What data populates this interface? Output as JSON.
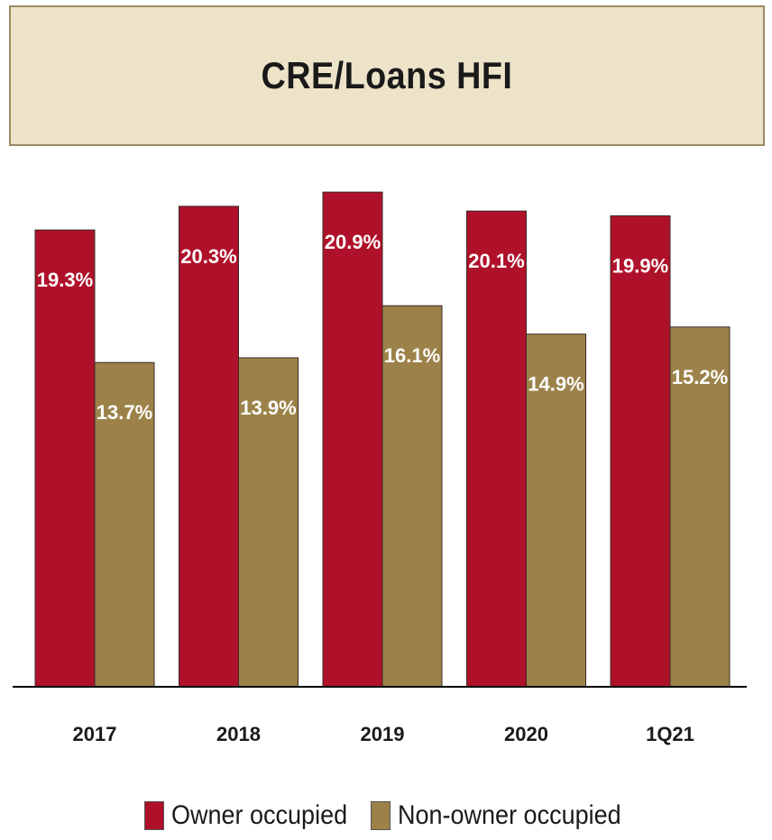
{
  "title": "CRE/Loans HFI",
  "colors": {
    "owner": "#b0112a",
    "non_owner": "#9c8249",
    "axis": "#000000"
  },
  "legend": [
    {
      "label": "Owner occupied",
      "color": "#b0112a"
    },
    {
      "label": "Non-owner occupied",
      "color": "#9c8249"
    }
  ],
  "chart_data": {
    "type": "bar",
    "title": "CRE/Loans HFI",
    "categories": [
      "2017",
      "2018",
      "2019",
      "2020",
      "1Q21"
    ],
    "series": [
      {
        "name": "Owner occupied",
        "values": [
          19.3,
          20.3,
          20.9,
          20.1,
          19.9
        ],
        "labels": [
          "19.3%",
          "20.3%",
          "20.9%",
          "20.1%",
          "19.9%"
        ]
      },
      {
        "name": "Non-owner occupied",
        "values": [
          13.7,
          13.9,
          16.1,
          14.9,
          15.2
        ],
        "labels": [
          "13.7%",
          "13.9%",
          "16.1%",
          "14.9%",
          "15.2%"
        ]
      }
    ],
    "ylim": [
      0,
      21.4
    ],
    "grid": false,
    "legend_position": "bottom"
  }
}
